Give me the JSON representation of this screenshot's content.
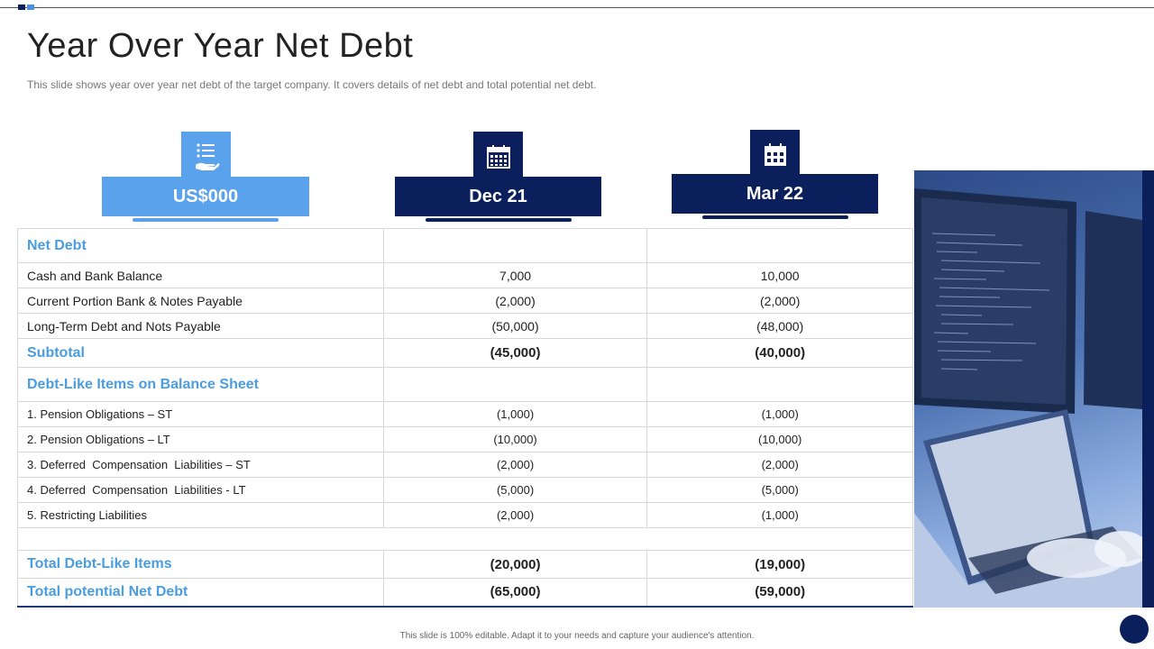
{
  "slide": {
    "title": "Year Over Year Net Debt",
    "subtitle": "This slide shows year over year net debt of the target company. It covers details of net debt and total potential net debt.",
    "footer": "This slide is 100% editable. Adapt it to your needs and capture your audience's attention."
  },
  "headers": {
    "col1": {
      "label": "US$000",
      "icon": "list-hand-icon",
      "color": "#5aa2ec"
    },
    "col2": {
      "label": "Dec 21",
      "icon": "calendar-icon",
      "color": "#0a1f5c"
    },
    "col3": {
      "label": "Mar 22",
      "icon": "calendar-icon",
      "color": "#0a1f5c"
    }
  },
  "table": {
    "net_debt_label": "Net Debt",
    "rows1": [
      {
        "label": "Cash and Bank Balance",
        "dec": "7,000",
        "mar": "10,000"
      },
      {
        "label": "Current Portion Bank & Notes Payable",
        "dec": "(2,000)",
        "mar": "(2,000)"
      },
      {
        "label": "Long-Term Debt and Nots Payable",
        "dec": "(50,000)",
        "mar": "(48,000)"
      }
    ],
    "subtotal": {
      "label": "Subtotal",
      "dec": "(45,000)",
      "mar": "(40,000)"
    },
    "debt_like_label": "Debt-Like Items on Balance Sheet",
    "rows2": [
      {
        "label": "1. Pension Obligations – ST",
        "dec": "(1,000)",
        "mar": "(1,000)"
      },
      {
        "label": "2. Pension Obligations – LT",
        "dec": "(10,000)",
        "mar": "(10,000)"
      },
      {
        "label": "3. Deferred  Compensation  Liabilities – ST",
        "dec": "(2,000)",
        "mar": "(2,000)"
      },
      {
        "label": "4. Deferred  Compensation  Liabilities - LT",
        "dec": "(5,000)",
        "mar": "(5,000)"
      },
      {
        "label": "5. Restricting Liabilities",
        "dec": "(2,000)",
        "mar": "(1,000)"
      }
    ],
    "total_debt_like": {
      "label": "Total Debt-Like Items",
      "dec": "(20,000)",
      "mar": "(19,000)"
    },
    "total_potential": {
      "label": "Total potential Net Debt",
      "dec": "(65,000)",
      "mar": "(59,000)"
    }
  }
}
